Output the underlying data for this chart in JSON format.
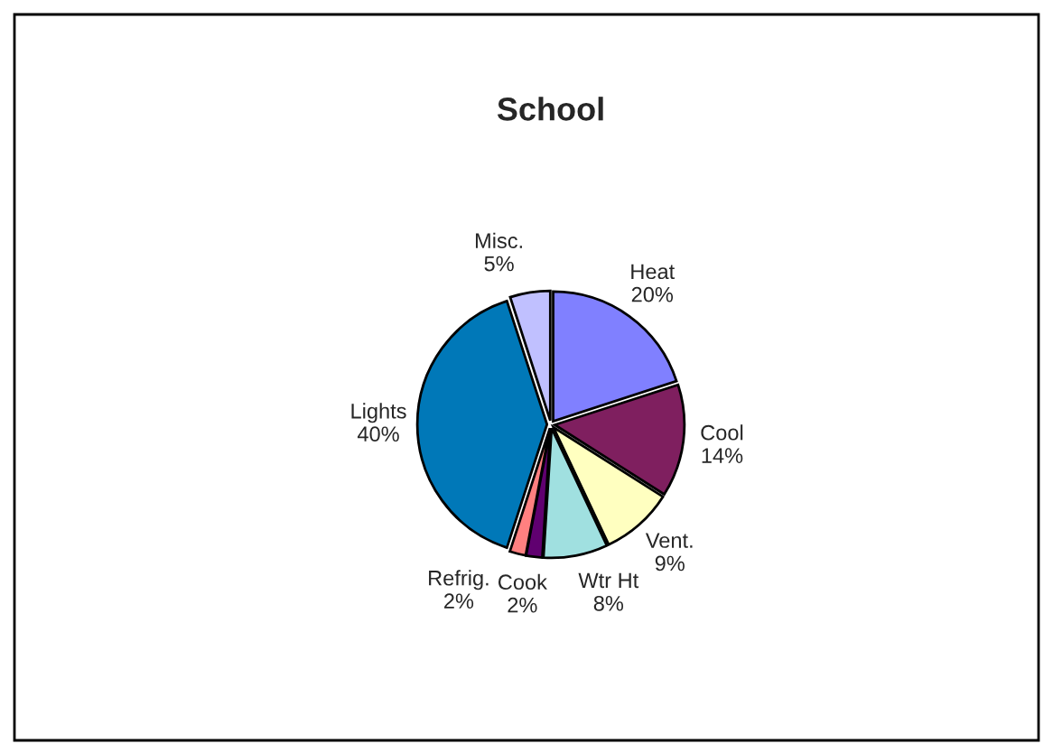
{
  "chart_data": {
    "type": "pie",
    "title": "School",
    "categories": [
      "Heat",
      "Cool",
      "Vent.",
      "Wtr Ht",
      "Cook",
      "Refrig.",
      "Lights",
      "Misc."
    ],
    "values": [
      20,
      14,
      9,
      8,
      2,
      2,
      40,
      5
    ],
    "value_labels": [
      "20%",
      "14%",
      "9%",
      "8%",
      "2%",
      "2%",
      "40%",
      "5%"
    ],
    "colors": [
      "#8080ff",
      "#7f1f5f",
      "#ffffc0",
      "#a0e0e0",
      "#600070",
      "#ff8080",
      "#0078b8",
      "#c0c0ff"
    ],
    "legend": false
  }
}
